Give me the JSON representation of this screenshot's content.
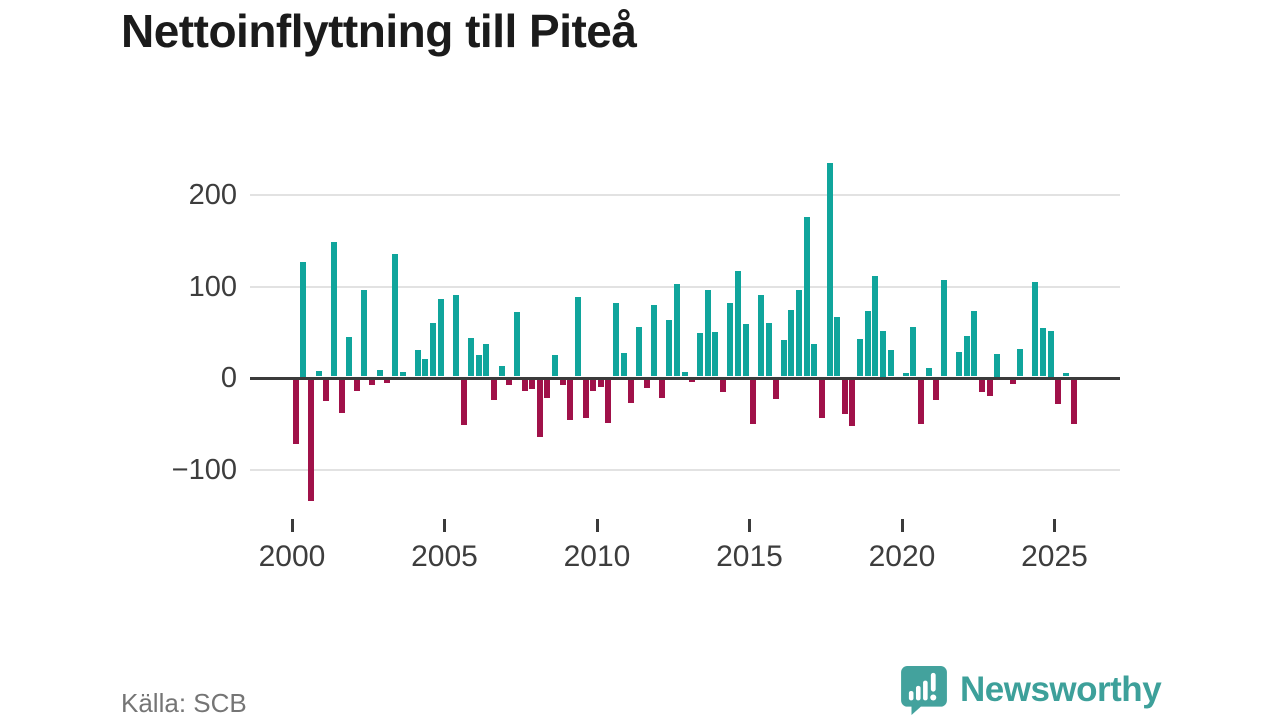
{
  "title": "Nettoinflyttning till Piteå",
  "source": "Källa: SCB",
  "branding": {
    "logo_text": "Newsworthy",
    "logo_color": "#43a29d"
  },
  "chart_data": {
    "type": "bar",
    "title": "Nettoinflyttning till Piteå",
    "frequency": "quarterly",
    "period_start": "2000-Q1",
    "period_end": "2025-Q3",
    "values": [
      -70,
      125,
      -133,
      6,
      -23,
      147,
      -37,
      43,
      -13,
      95,
      -6,
      7,
      -4,
      134,
      5,
      0,
      29,
      19,
      58,
      85,
      0,
      89,
      -50,
      42,
      23,
      36,
      -22,
      11,
      -6,
      71,
      -13,
      -10,
      -63,
      -20,
      24,
      -6,
      -44,
      87,
      -42,
      -13,
      -8,
      -47,
      80,
      26,
      -26,
      54,
      -9,
      78,
      -20,
      62,
      101,
      5,
      -3,
      48,
      94,
      49,
      -14,
      80,
      115,
      57,
      -49,
      89,
      59,
      -21,
      40,
      73,
      95,
      174,
      36,
      -42,
      233,
      65,
      -38,
      -51,
      41,
      72,
      110,
      50,
      29,
      0,
      4,
      54,
      -49,
      9,
      -22,
      105,
      0,
      27,
      44,
      72,
      -14,
      -18,
      25,
      0,
      -5,
      30,
      0,
      103,
      53,
      50,
      -27,
      4,
      -49
    ],
    "xticks": [
      2000,
      2005,
      2010,
      2015,
      2020,
      2025
    ],
    "yticks": [
      -100,
      0,
      100,
      200
    ],
    "ylim": [
      -140,
      250
    ],
    "positive_color": "#10a59c",
    "negative_color": "#a01149",
    "grid": "horizontal",
    "legend": "none"
  }
}
